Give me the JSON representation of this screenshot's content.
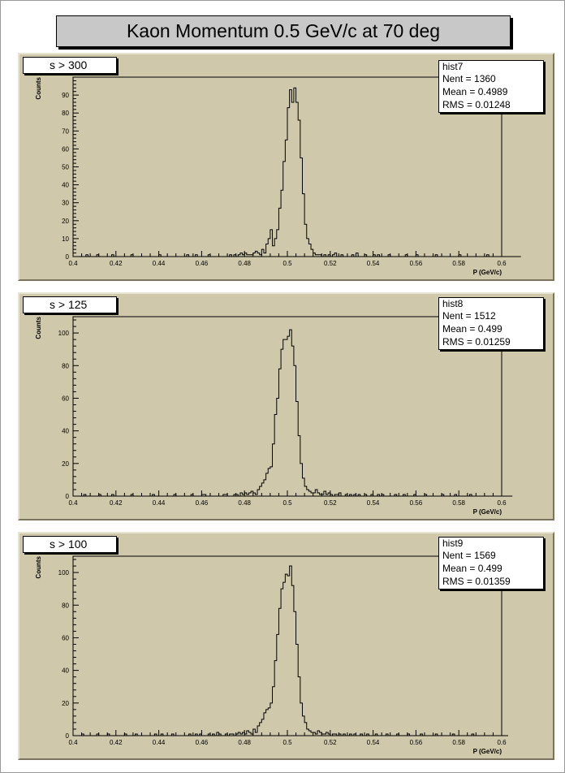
{
  "title": "Kaon Momentum 0.5 GeV/c at 70 deg",
  "chart_data": [
    {
      "type": "histogram",
      "cut_label": "s > 300",
      "stats": {
        "name": "hist7",
        "nent_label": "Nent = 1360",
        "mean_label": "Mean  = 0.4989",
        "rms_label": "RMS   = 0.01248"
      },
      "xlabel": "P (GeV/c)",
      "ylabel": "Counts",
      "xlim": [
        0.4,
        0.6
      ],
      "ylim": [
        0,
        100
      ],
      "x_ticks": [
        "0.4",
        "0.42",
        "0.44",
        "0.46",
        "0.48",
        "0.5",
        "0.52",
        "0.54",
        "0.56",
        "0.58",
        "0.6"
      ],
      "y_ticks": [
        0,
        10,
        20,
        30,
        40,
        50,
        60,
        70,
        80,
        90
      ],
      "bin_width": 0.001,
      "values": [
        0,
        0,
        0,
        0,
        0,
        0,
        1,
        0,
        0,
        0,
        0,
        1,
        0,
        0,
        0,
        0,
        0,
        0,
        1,
        0,
        0,
        0,
        0,
        0,
        0,
        0,
        0,
        1,
        0,
        0,
        0,
        0,
        0,
        0,
        0,
        0,
        0,
        0,
        0,
        0,
        1,
        0,
        0,
        0,
        0,
        0,
        0,
        0,
        0,
        0,
        0,
        0,
        0,
        1,
        0,
        0,
        0,
        1,
        0,
        0,
        0,
        0,
        0,
        1,
        0,
        0,
        0,
        0,
        0,
        0,
        0,
        0,
        0,
        1,
        0,
        1,
        0,
        1,
        2,
        1,
        2,
        1,
        1,
        1,
        2,
        3,
        2,
        1,
        4,
        2,
        7,
        10,
        15,
        6,
        10,
        15,
        27,
        37,
        53,
        65,
        83,
        93,
        86,
        94,
        86,
        76,
        55,
        35,
        18,
        10,
        7,
        4,
        2,
        1,
        1,
        1,
        0,
        1,
        0,
        1,
        0,
        1,
        2,
        0,
        0,
        1,
        0,
        0,
        0,
        0,
        1,
        0,
        2,
        0,
        0,
        0,
        1,
        0,
        0,
        0,
        1,
        0,
        1,
        0,
        0,
        0,
        0,
        1,
        0,
        0,
        0,
        0,
        0,
        0,
        0,
        1,
        0,
        0,
        0,
        0,
        1,
        0,
        0,
        0,
        0,
        0,
        0,
        0,
        0,
        1,
        0,
        0,
        0,
        0,
        0,
        0,
        0,
        0,
        0,
        0,
        1,
        0,
        0,
        0,
        0,
        0,
        0,
        0,
        0,
        0,
        0,
        0,
        0,
        1,
        0,
        0,
        0,
        0,
        0,
        0,
        0,
        0,
        0,
        0,
        0,
        0,
        0,
        0,
        0
      ]
    },
    {
      "type": "histogram",
      "cut_label": "s > 125",
      "stats": {
        "name": "hist8",
        "nent_label": "Nent = 1512",
        "mean_label": "Mean  = 0.499",
        "rms_label": "RMS   = 0.01259"
      },
      "xlabel": "P (GeV/c)",
      "ylabel": "Counts",
      "xlim": [
        0.4,
        0.6
      ],
      "ylim": [
        0,
        110
      ],
      "x_ticks": [
        "0.4",
        "0.42",
        "0.44",
        "0.46",
        "0.48",
        "0.5",
        "0.52",
        "0.54",
        "0.56",
        "0.58",
        "0.6"
      ],
      "y_ticks": [
        0,
        20,
        40,
        60,
        80,
        100
      ],
      "bin_width": 0.001,
      "values": [
        0,
        0,
        0,
        0,
        0,
        1,
        0,
        0,
        0,
        0,
        0,
        0,
        1,
        0,
        0,
        0,
        0,
        0,
        1,
        0,
        0,
        0,
        0,
        0,
        0,
        0,
        0,
        1,
        0,
        0,
        0,
        0,
        0,
        0,
        0,
        0,
        0,
        1,
        0,
        0,
        0,
        0,
        0,
        0,
        0,
        0,
        0,
        1,
        0,
        0,
        0,
        0,
        0,
        0,
        0,
        1,
        0,
        0,
        0,
        0,
        1,
        1,
        0,
        0,
        0,
        0,
        0,
        0,
        0,
        0,
        1,
        1,
        0,
        0,
        0,
        1,
        1,
        0,
        2,
        1,
        2,
        1,
        2,
        3,
        2,
        1,
        4,
        6,
        8,
        10,
        14,
        17,
        18,
        32,
        50,
        60,
        78,
        90,
        96,
        96,
        98,
        102,
        92,
        80,
        58,
        37,
        20,
        11,
        6,
        4,
        3,
        2,
        2,
        4,
        2,
        1,
        1,
        3,
        1,
        2,
        1,
        0,
        1,
        1,
        2,
        0,
        0,
        1,
        0,
        1,
        0,
        1,
        0,
        1,
        0,
        0,
        1,
        0,
        0,
        1,
        0,
        0,
        1,
        0,
        1,
        0,
        0,
        0,
        0,
        0,
        1,
        0,
        0,
        0,
        1,
        0,
        0,
        0,
        0,
        1,
        0,
        0,
        0,
        0,
        1,
        0,
        0,
        0,
        0,
        0,
        0,
        0,
        1,
        0,
        0,
        0,
        0,
        0,
        1,
        0,
        0,
        0,
        0,
        0,
        0,
        1,
        0,
        0,
        0,
        0,
        0,
        0,
        0,
        0,
        0,
        0,
        0,
        0,
        0,
        0,
        0,
        0,
        0,
        0,
        0
      ]
    },
    {
      "type": "histogram",
      "cut_label": "s > 100",
      "stats": {
        "name": "hist9",
        "nent_label": "Nent = 1569",
        "mean_label": "Mean  = 0.499",
        "rms_label": "RMS   = 0.01359"
      },
      "xlabel": "P (GeV/c)",
      "ylabel": "Counts",
      "xlim": [
        0.4,
        0.6
      ],
      "ylim": [
        0,
        110
      ],
      "x_ticks": [
        "0.4",
        "0.42",
        "0.44",
        "0.46",
        "0.48",
        "0.5",
        "0.52",
        "0.54",
        "0.56",
        "0.58",
        "0.6"
      ],
      "y_ticks": [
        0,
        20,
        40,
        60,
        80,
        100
      ],
      "bin_width": 0.001,
      "values": [
        0,
        0,
        0,
        0,
        1,
        0,
        0,
        0,
        0,
        0,
        0,
        1,
        0,
        0,
        0,
        0,
        1,
        0,
        0,
        0,
        0,
        0,
        0,
        0,
        1,
        0,
        0,
        0,
        0,
        1,
        0,
        0,
        0,
        0,
        0,
        0,
        0,
        0,
        1,
        0,
        0,
        1,
        0,
        0,
        0,
        0,
        1,
        0,
        0,
        0,
        0,
        0,
        0,
        0,
        1,
        0,
        0,
        1,
        0,
        1,
        0,
        0,
        0,
        1,
        0,
        1,
        0,
        2,
        1,
        0,
        0,
        1,
        0,
        1,
        1,
        0,
        1,
        2,
        1,
        2,
        1,
        3,
        2,
        1,
        4,
        2,
        6,
        8,
        10,
        14,
        16,
        17,
        20,
        30,
        46,
        62,
        78,
        90,
        94,
        99,
        98,
        104,
        92,
        76,
        56,
        36,
        20,
        12,
        8,
        4,
        3,
        2,
        2,
        1,
        3,
        2,
        1,
        1,
        2,
        1,
        0,
        1,
        1,
        0,
        1,
        0,
        1,
        0,
        0,
        1,
        0,
        1,
        0,
        0,
        1,
        0,
        0,
        1,
        0,
        0,
        0,
        1,
        0,
        0,
        0,
        0,
        1,
        0,
        0,
        0,
        0,
        1,
        0,
        0,
        0,
        0,
        1,
        0,
        0,
        0,
        0,
        0,
        1,
        0,
        0,
        0,
        0,
        0,
        0,
        1,
        0,
        0,
        0,
        0,
        0,
        0,
        0,
        1,
        0,
        0,
        0,
        0,
        0,
        0,
        0,
        0,
        1,
        0,
        0,
        0,
        0,
        0,
        0,
        0,
        0,
        0,
        0,
        0,
        0,
        0,
        0,
        0,
        0
      ]
    }
  ]
}
